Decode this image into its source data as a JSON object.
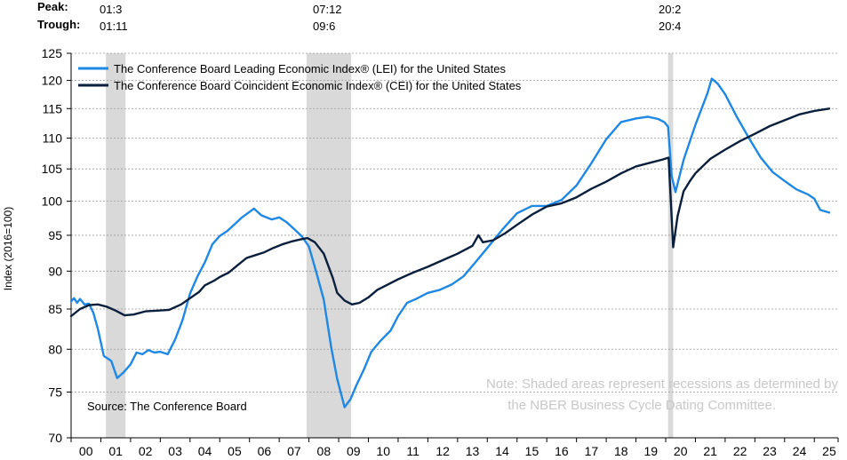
{
  "header": {
    "peak_label": "Peak:",
    "trough_label": "Trough:",
    "recessions": [
      {
        "peak": "01:3",
        "trough": "01:11"
      },
      {
        "peak": "07:12",
        "trough": "09:6"
      },
      {
        "peak": "20:2",
        "trough": "20:4"
      }
    ]
  },
  "chart_data": {
    "type": "line",
    "y_scale": "log",
    "ylabel": "Index (2016=100)",
    "xlabel": "",
    "ylim": [
      70,
      125
    ],
    "yticks": [
      70,
      75,
      80,
      85,
      90,
      95,
      100,
      105,
      110,
      115,
      120,
      125
    ],
    "grid": true,
    "xlim": [
      2000.0,
      2025.8
    ],
    "xticks": [
      {
        "year": 2000,
        "label": "00"
      },
      {
        "year": 2001,
        "label": "01"
      },
      {
        "year": 2002,
        "label": "02"
      },
      {
        "year": 2003,
        "label": "03"
      },
      {
        "year": 2004,
        "label": "04"
      },
      {
        "year": 2005,
        "label": "05"
      },
      {
        "year": 2006,
        "label": "06"
      },
      {
        "year": 2007,
        "label": "07"
      },
      {
        "year": 2008,
        "label": "08"
      },
      {
        "year": 2009,
        "label": "09"
      },
      {
        "year": 2010,
        "label": "10"
      },
      {
        "year": 2011,
        "label": "11"
      },
      {
        "year": 2012,
        "label": "12"
      },
      {
        "year": 2013,
        "label": "13"
      },
      {
        "year": 2014,
        "label": "14"
      },
      {
        "year": 2015,
        "label": "15"
      },
      {
        "year": 2016,
        "label": "16"
      },
      {
        "year": 2017,
        "label": "17"
      },
      {
        "year": 2018,
        "label": "18"
      },
      {
        "year": 2019,
        "label": "19"
      },
      {
        "year": 2020,
        "label": "20"
      },
      {
        "year": 2021,
        "label": "21"
      },
      {
        "year": 2022,
        "label": "22"
      },
      {
        "year": 2023,
        "label": "23"
      },
      {
        "year": 2024,
        "label": "24"
      },
      {
        "year": 2025,
        "label": "25"
      }
    ],
    "recession_bands": [
      {
        "start": 2001.17,
        "end": 2001.83
      },
      {
        "start": 2007.92,
        "end": 2009.42
      },
      {
        "start": 2020.08,
        "end": 2020.25
      }
    ],
    "legend_position": "top-left",
    "series": [
      {
        "name": "The Conference Board Leading Economic Index® (LEI) for the United States",
        "color": "#1e88e5",
        "points": [
          [
            2000.0,
            86.0
          ],
          [
            2000.1,
            86.4
          ],
          [
            2000.2,
            85.8
          ],
          [
            2000.3,
            86.3
          ],
          [
            2000.45,
            85.6
          ],
          [
            2000.6,
            85.7
          ],
          [
            2000.75,
            84.5
          ],
          [
            2000.9,
            82.5
          ],
          [
            2001.1,
            79.2
          ],
          [
            2001.35,
            78.6
          ],
          [
            2001.55,
            76.6
          ],
          [
            2001.75,
            77.2
          ],
          [
            2002.0,
            78.2
          ],
          [
            2002.2,
            79.6
          ],
          [
            2002.4,
            79.4
          ],
          [
            2002.6,
            79.9
          ],
          [
            2002.8,
            79.6
          ],
          [
            2003.0,
            79.7
          ],
          [
            2003.25,
            79.4
          ],
          [
            2003.5,
            81.2
          ],
          [
            2003.75,
            83.6
          ],
          [
            2004.0,
            87.0
          ],
          [
            2004.25,
            89.3
          ],
          [
            2004.5,
            91.2
          ],
          [
            2004.75,
            93.7
          ],
          [
            2005.0,
            94.9
          ],
          [
            2005.25,
            95.6
          ],
          [
            2005.5,
            96.6
          ],
          [
            2005.75,
            97.6
          ],
          [
            2006.0,
            98.4
          ],
          [
            2006.15,
            98.9
          ],
          [
            2006.4,
            97.9
          ],
          [
            2006.75,
            97.3
          ],
          [
            2007.0,
            97.6
          ],
          [
            2007.25,
            96.9
          ],
          [
            2007.5,
            95.9
          ],
          [
            2007.75,
            94.9
          ],
          [
            2008.0,
            93.4
          ],
          [
            2008.25,
            89.8
          ],
          [
            2008.5,
            86.2
          ],
          [
            2008.75,
            80.2
          ],
          [
            2008.95,
            76.5
          ],
          [
            2009.2,
            73.3
          ],
          [
            2009.4,
            74.2
          ],
          [
            2009.6,
            75.8
          ],
          [
            2009.85,
            77.6
          ],
          [
            2010.1,
            79.7
          ],
          [
            2010.4,
            81.0
          ],
          [
            2010.75,
            82.3
          ],
          [
            2011.0,
            84.1
          ],
          [
            2011.3,
            85.8
          ],
          [
            2011.6,
            86.3
          ],
          [
            2012.0,
            87.1
          ],
          [
            2012.4,
            87.5
          ],
          [
            2012.8,
            88.2
          ],
          [
            2013.2,
            89.3
          ],
          [
            2013.6,
            91.2
          ],
          [
            2014.0,
            93.2
          ],
          [
            2014.5,
            95.8
          ],
          [
            2015.0,
            98.2
          ],
          [
            2015.5,
            99.3
          ],
          [
            2016.0,
            99.3
          ],
          [
            2016.5,
            100.2
          ],
          [
            2017.0,
            102.4
          ],
          [
            2017.5,
            105.9
          ],
          [
            2018.0,
            109.8
          ],
          [
            2018.5,
            112.7
          ],
          [
            2019.0,
            113.3
          ],
          [
            2019.4,
            113.6
          ],
          [
            2019.75,
            113.2
          ],
          [
            2019.95,
            112.7
          ],
          [
            2020.08,
            111.9
          ],
          [
            2020.2,
            103.9
          ],
          [
            2020.33,
            101.4
          ],
          [
            2020.6,
            106.4
          ],
          [
            2021.0,
            112.2
          ],
          [
            2021.4,
            117.6
          ],
          [
            2021.55,
            120.3
          ],
          [
            2021.75,
            119.4
          ],
          [
            2022.0,
            117.5
          ],
          [
            2022.4,
            113.5
          ],
          [
            2022.8,
            110.0
          ],
          [
            2023.2,
            106.8
          ],
          [
            2023.6,
            104.5
          ],
          [
            2024.0,
            103.1
          ],
          [
            2024.4,
            101.8
          ],
          [
            2024.8,
            101.0
          ],
          [
            2025.0,
            100.4
          ],
          [
            2025.2,
            98.7
          ],
          [
            2025.5,
            98.3
          ]
        ]
      },
      {
        "name": "The Conference Board Coincident Economic Index® (CEI) for the United States",
        "color": "#0a1f3c",
        "points": [
          [
            2000.0,
            84.1
          ],
          [
            2000.3,
            85.0
          ],
          [
            2000.6,
            85.5
          ],
          [
            2000.9,
            85.6
          ],
          [
            2001.2,
            85.3
          ],
          [
            2001.5,
            84.8
          ],
          [
            2001.8,
            84.2
          ],
          [
            2002.1,
            84.3
          ],
          [
            2002.5,
            84.7
          ],
          [
            2002.9,
            84.8
          ],
          [
            2003.3,
            84.9
          ],
          [
            2003.7,
            85.6
          ],
          [
            2004.0,
            86.4
          ],
          [
            2004.3,
            87.2
          ],
          [
            2004.5,
            88.1
          ],
          [
            2004.8,
            88.7
          ],
          [
            2005.0,
            89.2
          ],
          [
            2005.3,
            89.8
          ],
          [
            2005.6,
            90.8
          ],
          [
            2005.9,
            91.8
          ],
          [
            2006.2,
            92.2
          ],
          [
            2006.5,
            92.6
          ],
          [
            2006.8,
            93.2
          ],
          [
            2007.1,
            93.7
          ],
          [
            2007.4,
            94.1
          ],
          [
            2007.7,
            94.4
          ],
          [
            2007.95,
            94.6
          ],
          [
            2008.2,
            94.0
          ],
          [
            2008.5,
            92.4
          ],
          [
            2008.8,
            89.1
          ],
          [
            2008.95,
            87.1
          ],
          [
            2009.2,
            86.1
          ],
          [
            2009.45,
            85.6
          ],
          [
            2009.7,
            85.8
          ],
          [
            2010.0,
            86.5
          ],
          [
            2010.3,
            87.5
          ],
          [
            2010.6,
            88.1
          ],
          [
            2011.0,
            88.9
          ],
          [
            2011.5,
            89.8
          ],
          [
            2012.0,
            90.6
          ],
          [
            2012.5,
            91.5
          ],
          [
            2013.0,
            92.4
          ],
          [
            2013.5,
            93.5
          ],
          [
            2013.7,
            95.0
          ],
          [
            2013.85,
            94.0
          ],
          [
            2014.2,
            94.3
          ],
          [
            2014.6,
            95.3
          ],
          [
            2015.0,
            96.5
          ],
          [
            2015.5,
            98.0
          ],
          [
            2016.0,
            99.2
          ],
          [
            2016.5,
            99.7
          ],
          [
            2017.0,
            100.6
          ],
          [
            2017.5,
            101.9
          ],
          [
            2018.0,
            103.0
          ],
          [
            2018.5,
            104.3
          ],
          [
            2019.0,
            105.4
          ],
          [
            2019.5,
            106.0
          ],
          [
            2019.9,
            106.5
          ],
          [
            2020.1,
            106.8
          ],
          [
            2020.25,
            93.3
          ],
          [
            2020.4,
            97.8
          ],
          [
            2020.6,
            101.5
          ],
          [
            2020.8,
            103.0
          ],
          [
            2021.0,
            104.3
          ],
          [
            2021.5,
            106.6
          ],
          [
            2022.0,
            108.1
          ],
          [
            2022.5,
            109.5
          ],
          [
            2023.0,
            110.7
          ],
          [
            2023.5,
            112.0
          ],
          [
            2024.0,
            113.0
          ],
          [
            2024.5,
            114.0
          ],
          [
            2025.0,
            114.6
          ],
          [
            2025.5,
            115.0
          ]
        ]
      }
    ],
    "annotations": {
      "note": [
        "Note: Shaded areas represent recessions as determined by",
        "the NBER Business Cycle Dating Committee."
      ],
      "source": "Source: The Conference Board"
    }
  }
}
